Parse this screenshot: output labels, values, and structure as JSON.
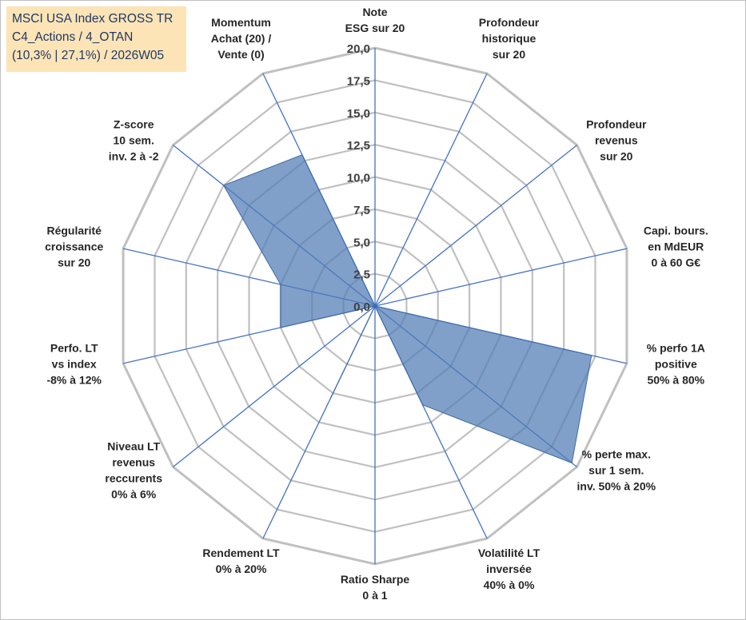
{
  "title": {
    "lines": [
      "MSCI USA Index GROSS TR",
      "C4_Actions / 4_OTAN",
      "(10,3% | 27,1%) / 2026W05"
    ]
  },
  "chart_data": {
    "type": "radar",
    "title": "",
    "rmax": 20,
    "ticks": [
      "0,0",
      "2,5",
      "5,0",
      "7,5",
      "10,0",
      "12,5",
      "15,0",
      "17,5",
      "20,0"
    ],
    "tick_values": [
      0,
      2.5,
      5,
      7.5,
      10,
      12.5,
      15,
      17.5,
      20
    ],
    "grid": true,
    "axes": [
      {
        "label": [
          "Note",
          "ESG sur 20"
        ],
        "value": 0
      },
      {
        "label": [
          "Profondeur",
          "historique",
          "sur 20"
        ],
        "value": 0
      },
      {
        "label": [
          "Profondeur",
          "revenus",
          "sur 20"
        ],
        "value": 0
      },
      {
        "label": [
          "Capi. bours.",
          "en MdEUR",
          "0 à 60 G€"
        ],
        "value": 0
      },
      {
        "label": [
          "% perfo 1A",
          "positive",
          "50% à 80%"
        ],
        "value": 17.2
      },
      {
        "label": [
          "% perte max.",
          "sur 1 sem.",
          "inv. 50% à 20%"
        ],
        "value": 19.5
      },
      {
        "label": [
          "Volatilité LT",
          "inversée",
          "40% à 0%"
        ],
        "value": 8.5
      },
      {
        "label": [
          "Ratio Sharpe",
          "0 à 1"
        ],
        "value": 0
      },
      {
        "label": [
          "Rendement LT",
          "0% à 20%"
        ],
        "value": 8
      },
      {
        "label": [
          "Niveau LT",
          "revenus",
          "reccurents",
          "0% à 6%"
        ],
        "value": 0
      },
      {
        "label": [
          "Perfo. LT",
          "vs index",
          "-8% à 12%"
        ],
        "value": 7.5
      },
      {
        "label": [
          "Régularité",
          "croissance",
          "sur 20"
        ],
        "value": 7.5
      },
      {
        "label": [
          "Z-score",
          "10 sem.",
          "inv. 2 à -2"
        ],
        "value": 15
      },
      {
        "label": [
          "Momentum",
          "Achat (20) /",
          "Vente (0)"
        ],
        "value": 13
      }
    ],
    "series": [
      {
        "fill": "#4f7bb5",
        "fill_opacity": 0.72,
        "stroke": "#3b6aa8"
      }
    ],
    "colors": {
      "grid": "#c0c0c0",
      "spoke": "#4472c4",
      "text": "#262626"
    }
  }
}
